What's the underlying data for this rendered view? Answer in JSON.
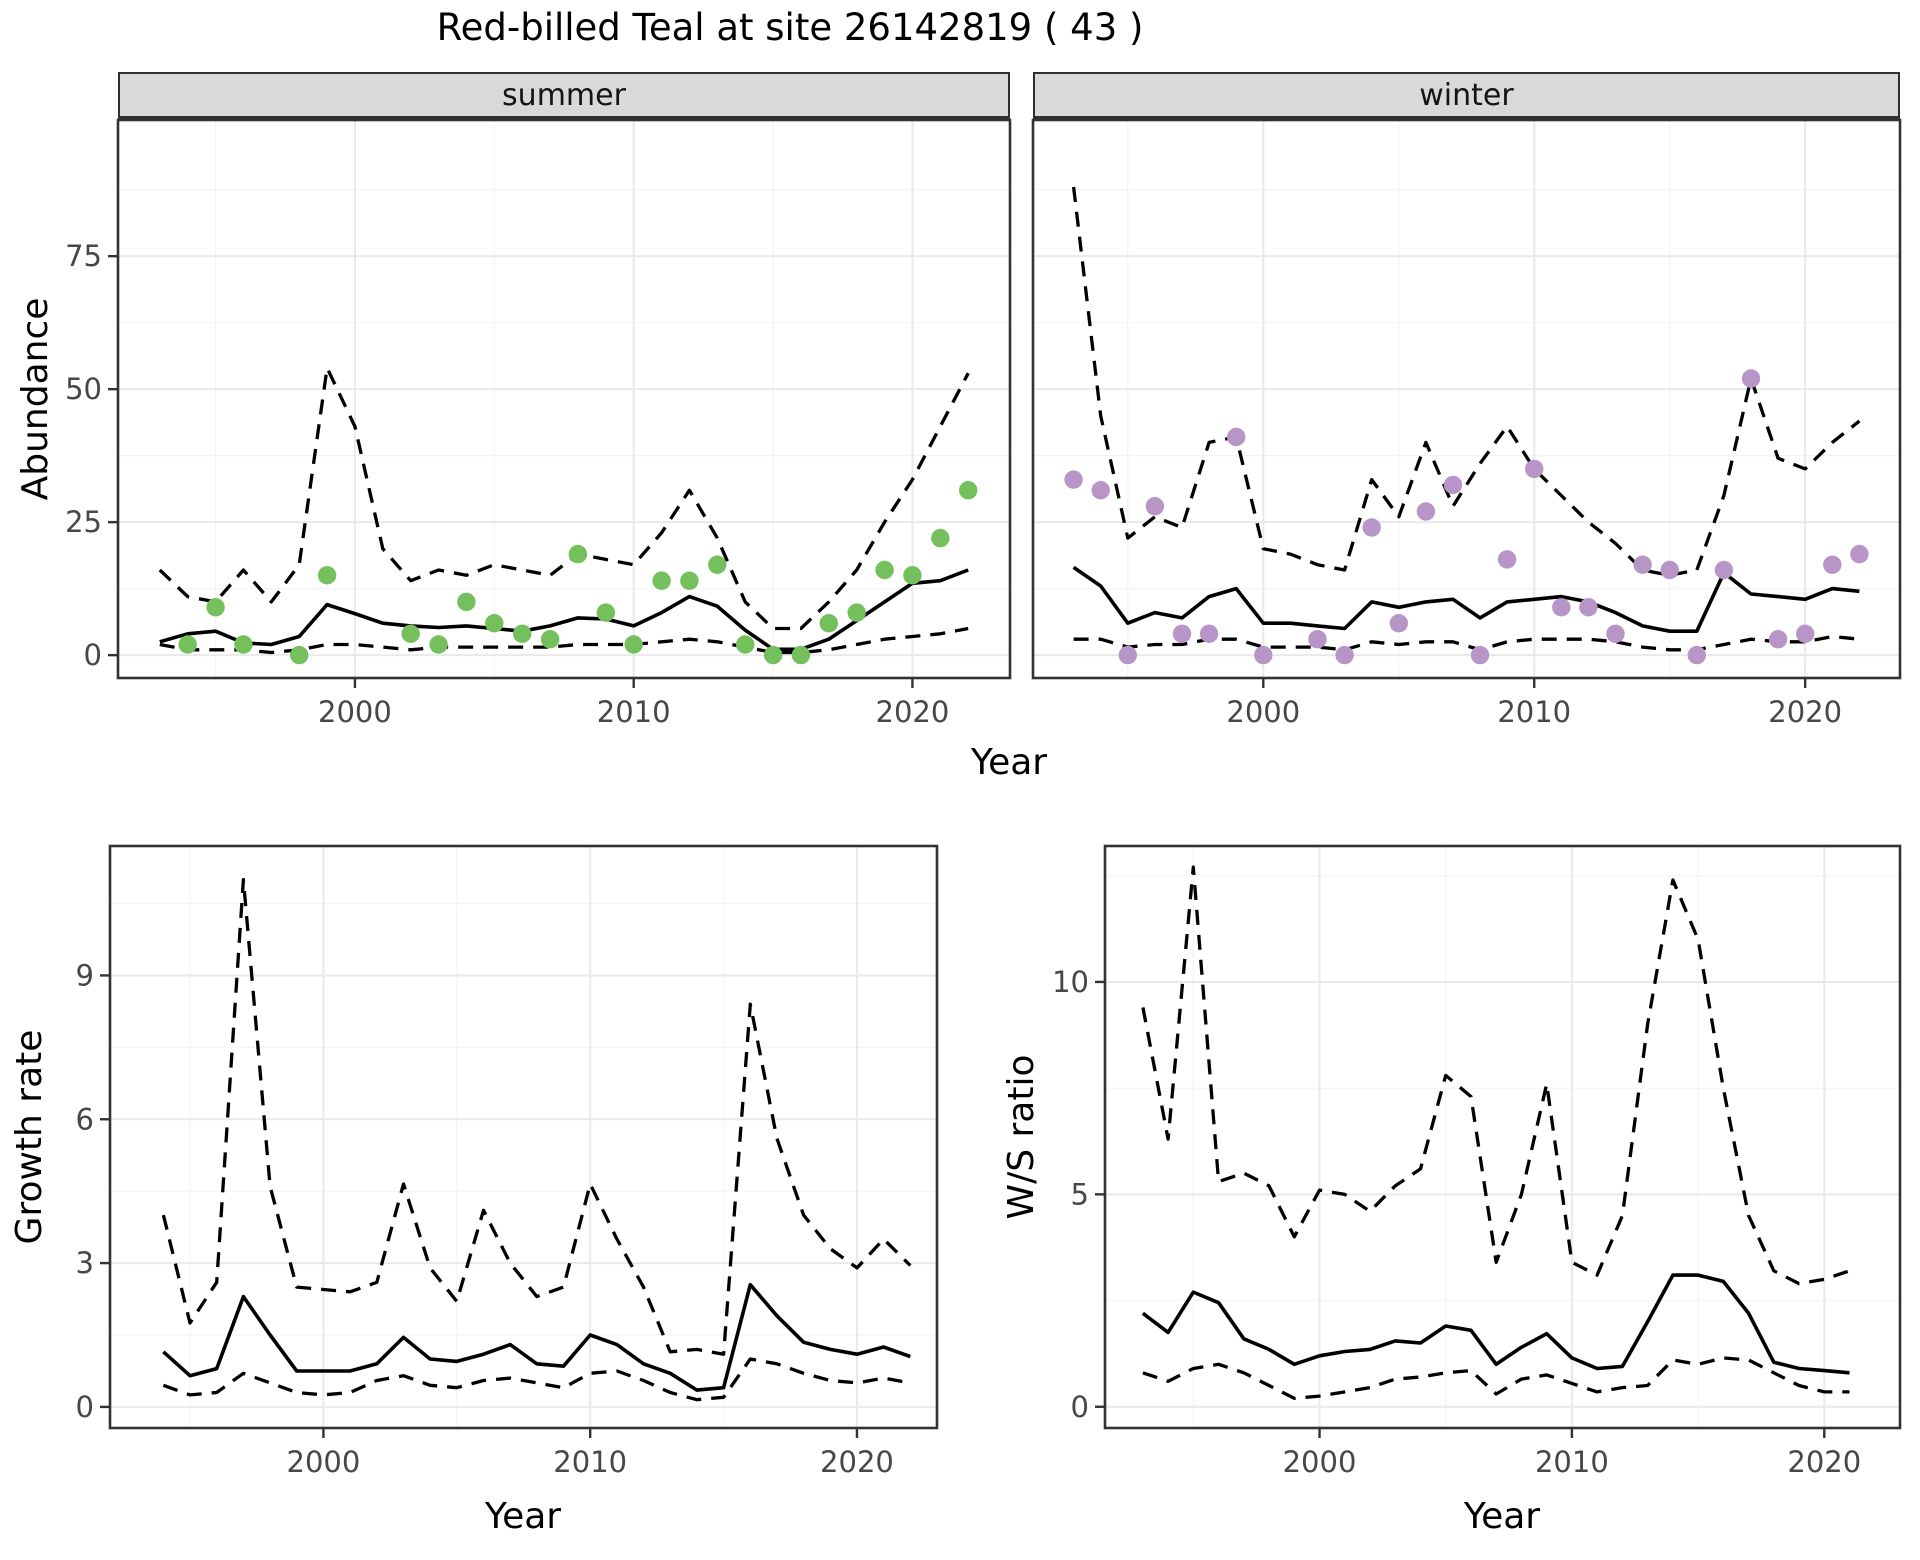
{
  "title": "Red-billed Teal at site 26142819 ( 43 )",
  "facets": {
    "summer": "summer",
    "winter": "winter"
  },
  "axis_titles": {
    "abundance": "Abundance",
    "year": "Year",
    "growth_rate": "Growth rate",
    "ws_ratio": "W/S ratio"
  },
  "colors": {
    "summer_point": "#73c05c",
    "winter_point": "#b795c7",
    "line": "#000000",
    "grid_major": "#e9e9e9",
    "grid_minor": "#f4f4f4",
    "strip_bg": "#d9d9d9",
    "panel_border": "#333333",
    "tick_text": "#474747"
  },
  "chart_data": [
    {
      "id": "abundance-summer",
      "type": "line",
      "facet_label": "summer",
      "xlabel": "Year",
      "ylabel": "Abundance",
      "xlim": [
        1991.5,
        2023.5
      ],
      "ylim": [
        -4.3,
        100.6
      ],
      "x_ticks": [
        2000,
        2010,
        2020
      ],
      "x_minor": [
        1995,
        2005,
        2015
      ],
      "y_ticks": [
        0,
        25,
        50,
        75
      ],
      "y_minor": [
        12.5,
        37.5,
        62.5,
        87.5
      ],
      "show_y_labels": true,
      "years": [
        1993,
        1994,
        1995,
        1996,
        1997,
        1998,
        1999,
        2000,
        2001,
        2002,
        2003,
        2004,
        2005,
        2006,
        2007,
        2008,
        2009,
        2010,
        2011,
        2012,
        2013,
        2014,
        2015,
        2016,
        2017,
        2018,
        2019,
        2020,
        2021,
        2022
      ],
      "series": [
        {
          "name": "upper_ci",
          "style": "dashed",
          "values": [
            16,
            11,
            10,
            16,
            10,
            17,
            54,
            43,
            20,
            14,
            16,
            15,
            17,
            16,
            15,
            19,
            18,
            17,
            23,
            31,
            22,
            10,
            5,
            5,
            10,
            16,
            25,
            33,
            43,
            53
          ]
        },
        {
          "name": "mean",
          "style": "solid",
          "values": [
            2.5,
            4,
            4.5,
            2.3,
            2,
            3.5,
            9.5,
            7.8,
            6,
            5.5,
            5.2,
            5.5,
            5,
            4.5,
            5.5,
            7,
            6.8,
            5.5,
            8,
            11,
            9.2,
            4.7,
            1.1,
            1.1,
            3,
            6.5,
            10,
            13.5,
            14,
            16
          ]
        },
        {
          "name": "lower_ci",
          "style": "dashed",
          "values": [
            2,
            1,
            1,
            1,
            0.5,
            1,
            2,
            2,
            1.5,
            1,
            1.5,
            1.5,
            1.5,
            1.5,
            1.5,
            2,
            2,
            2,
            2.5,
            3,
            2.5,
            1.5,
            0.5,
            0.5,
            1,
            2,
            3,
            3.5,
            4,
            5
          ]
        }
      ],
      "points": {
        "name": "observed_counts",
        "color": "#73c05c",
        "years": [
          1994,
          1995,
          1996,
          1998,
          1999,
          2002,
          2003,
          2004,
          2005,
          2006,
          2007,
          2008,
          2009,
          2010,
          2011,
          2012,
          2013,
          2014,
          2015,
          2016,
          2017,
          2018,
          2019,
          2020,
          2021,
          2022
        ],
        "values": [
          2,
          9,
          2,
          0,
          15,
          4,
          2,
          10,
          6,
          4,
          3,
          19,
          8,
          2,
          14,
          14,
          17,
          2,
          0,
          0,
          6,
          8,
          16,
          15,
          22,
          31
        ]
      }
    },
    {
      "id": "abundance-winter",
      "type": "line",
      "facet_label": "winter",
      "xlabel": "Year",
      "ylabel": "Abundance",
      "xlim": [
        1991.5,
        2023.5
      ],
      "ylim": [
        -4.3,
        100.6
      ],
      "x_ticks": [
        2000,
        2010,
        2020
      ],
      "x_minor": [
        1995,
        2005,
        2015
      ],
      "y_ticks": [
        0,
        25,
        50,
        75
      ],
      "y_minor": [
        12.5,
        37.5,
        62.5,
        87.5
      ],
      "show_y_labels": false,
      "years": [
        1993,
        1994,
        1995,
        1996,
        1997,
        1998,
        1999,
        2000,
        2001,
        2002,
        2003,
        2004,
        2005,
        2006,
        2007,
        2008,
        2009,
        2010,
        2011,
        2012,
        2013,
        2014,
        2015,
        2016,
        2017,
        2018,
        2019,
        2020,
        2021,
        2022
      ],
      "series": [
        {
          "name": "upper_ci",
          "style": "dashed",
          "values": [
            88,
            45,
            22,
            26,
            24,
            40,
            41,
            20,
            19,
            17,
            16,
            33,
            26,
            40,
            28,
            36,
            43,
            35,
            30,
            25,
            21,
            16,
            15,
            16,
            30,
            52,
            37,
            35,
            40,
            44
          ]
        },
        {
          "name": "mean",
          "style": "solid",
          "values": [
            16.5,
            13,
            6,
            8,
            7,
            11,
            12.5,
            6,
            6,
            5.5,
            5,
            10,
            9,
            10,
            10.5,
            7,
            10,
            10.5,
            11,
            10,
            8,
            5.5,
            4.5,
            4.5,
            15.5,
            11.5,
            11,
            10.5,
            12.5,
            12
          ]
        },
        {
          "name": "lower_ci",
          "style": "dashed",
          "values": [
            3,
            3,
            1.5,
            2,
            2,
            3,
            3,
            1.5,
            1.5,
            1.5,
            1,
            2.5,
            2,
            2.5,
            2.5,
            1,
            2.5,
            3,
            3,
            3,
            2.5,
            1.5,
            1,
            1,
            2,
            3,
            2.5,
            2.5,
            3.5,
            3
          ]
        }
      ],
      "points": {
        "name": "observed_counts",
        "color": "#b795c7",
        "years": [
          1993,
          1994,
          1995,
          1996,
          1997,
          1998,
          1999,
          2000,
          2002,
          2003,
          2004,
          2005,
          2006,
          2007,
          2008,
          2009,
          2010,
          2011,
          2012,
          2013,
          2014,
          2015,
          2016,
          2017,
          2018,
          2019,
          2020,
          2021,
          2022
        ],
        "values": [
          33,
          31,
          0,
          28,
          4,
          4,
          41,
          0,
          3,
          0,
          24,
          6,
          27,
          32,
          0,
          18,
          35,
          9,
          9,
          4,
          17,
          16,
          0,
          16,
          52,
          3,
          4,
          17,
          19
        ]
      }
    },
    {
      "id": "growth-rate",
      "type": "line",
      "facet_label": "",
      "xlabel": "Year",
      "ylabel": "Growth rate",
      "xlim": [
        1992,
        2023
      ],
      "ylim": [
        -0.44,
        11.7
      ],
      "x_ticks": [
        2000,
        2010,
        2020
      ],
      "x_minor": [
        1995,
        2005,
        2015
      ],
      "y_ticks": [
        0,
        3,
        6,
        9
      ],
      "y_minor": [
        1.5,
        4.5,
        7.5,
        10.5
      ],
      "show_y_labels": true,
      "years": [
        1994,
        1995,
        1996,
        1997,
        1998,
        1999,
        2000,
        2001,
        2002,
        2003,
        2004,
        2005,
        2006,
        2007,
        2008,
        2009,
        2010,
        2011,
        2012,
        2013,
        2014,
        2015,
        2016,
        2017,
        2018,
        2019,
        2020,
        2021,
        2022
      ],
      "series": [
        {
          "name": "upper_ci",
          "style": "dashed",
          "values": [
            4.0,
            1.75,
            2.6,
            11.0,
            4.6,
            2.5,
            2.45,
            2.4,
            2.6,
            4.65,
            2.9,
            2.2,
            4.1,
            3.0,
            2.3,
            2.5,
            4.65,
            3.5,
            2.5,
            1.15,
            1.2,
            1.1,
            8.4,
            5.6,
            4.0,
            3.3,
            2.9,
            3.5,
            2.95
          ]
        },
        {
          "name": "mean",
          "style": "solid",
          "values": [
            1.15,
            0.65,
            0.8,
            2.3,
            1.5,
            0.75,
            0.75,
            0.75,
            0.9,
            1.45,
            1.0,
            0.95,
            1.1,
            1.3,
            0.9,
            0.85,
            1.5,
            1.3,
            0.9,
            0.7,
            0.35,
            0.4,
            2.55,
            1.9,
            1.35,
            1.2,
            1.1,
            1.25,
            1.05
          ]
        },
        {
          "name": "lower_ci",
          "style": "dashed",
          "values": [
            0.45,
            0.25,
            0.3,
            0.7,
            0.5,
            0.3,
            0.25,
            0.3,
            0.55,
            0.65,
            0.45,
            0.4,
            0.55,
            0.6,
            0.5,
            0.4,
            0.7,
            0.75,
            0.55,
            0.3,
            0.15,
            0.2,
            1.0,
            0.9,
            0.7,
            0.55,
            0.5,
            0.6,
            0.5
          ]
        }
      ],
      "points": null
    },
    {
      "id": "ws-ratio",
      "type": "line",
      "facet_label": "",
      "xlabel": "Year",
      "ylabel": "W/S ratio",
      "xlim": [
        1991.5,
        2023
      ],
      "ylim": [
        -0.5,
        13.2
      ],
      "x_ticks": [
        2000,
        2010,
        2020
      ],
      "x_minor": [
        1995,
        2005,
        2015
      ],
      "y_ticks": [
        0,
        5,
        10
      ],
      "y_minor": [
        2.5,
        7.5,
        12.5
      ],
      "show_y_labels": true,
      "years": [
        1993,
        1994,
        1995,
        1996,
        1997,
        1998,
        1999,
        2000,
        2001,
        2002,
        2003,
        2004,
        2005,
        2006,
        2007,
        2008,
        2009,
        2010,
        2011,
        2012,
        2013,
        2014,
        2015,
        2016,
        2017,
        2018,
        2019,
        2020,
        2021
      ],
      "series": [
        {
          "name": "upper_ci",
          "style": "dashed",
          "values": [
            9.4,
            6.3,
            12.7,
            5.3,
            5.5,
            5.2,
            4.0,
            5.1,
            5.0,
            4.6,
            5.2,
            5.6,
            7.8,
            7.3,
            3.4,
            5.0,
            7.6,
            3.4,
            3.1,
            4.5,
            9.0,
            12.4,
            11.0,
            7.5,
            4.5,
            3.2,
            2.9,
            3.0,
            3.2
          ]
        },
        {
          "name": "mean",
          "style": "solid",
          "values": [
            2.2,
            1.75,
            2.7,
            2.45,
            1.6,
            1.35,
            1.0,
            1.2,
            1.3,
            1.35,
            1.55,
            1.5,
            1.9,
            1.8,
            1.0,
            1.4,
            1.72,
            1.15,
            0.9,
            0.95,
            2.0,
            3.1,
            3.1,
            2.95,
            2.2,
            1.05,
            0.9,
            0.85,
            0.8
          ]
        },
        {
          "name": "lower_ci",
          "style": "dashed",
          "values": [
            0.8,
            0.6,
            0.9,
            1.0,
            0.8,
            0.5,
            0.2,
            0.25,
            0.35,
            0.45,
            0.65,
            0.7,
            0.8,
            0.85,
            0.3,
            0.65,
            0.75,
            0.55,
            0.35,
            0.45,
            0.5,
            1.1,
            1.0,
            1.15,
            1.1,
            0.8,
            0.5,
            0.35,
            0.35
          ]
        }
      ],
      "points": null
    }
  ]
}
